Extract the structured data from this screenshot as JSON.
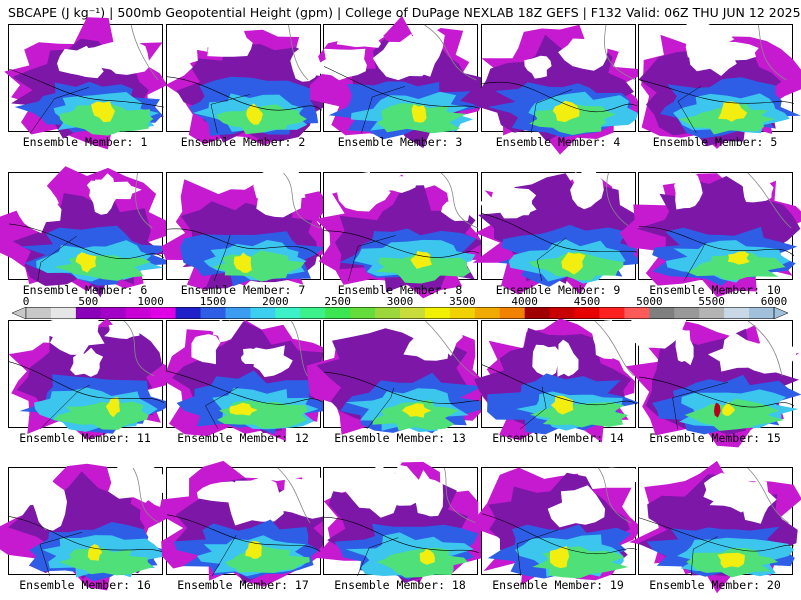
{
  "header": {
    "title": "SBCAPE (J kg⁻¹) | 500mb Geopotential Height (gpm) | College of DuPage NEXLAB 18Z GEFS | F132 Valid: 06Z THU JUN 12 2025"
  },
  "members": [
    {
      "label": "Ensemble Member: 1"
    },
    {
      "label": "Ensemble Member: 2"
    },
    {
      "label": "Ensemble Member: 3"
    },
    {
      "label": "Ensemble Member: 4"
    },
    {
      "label": "Ensemble Member: 5"
    },
    {
      "label": "Ensemble Member: 6"
    },
    {
      "label": "Ensemble Member: 7"
    },
    {
      "label": "Ensemble Member: 8"
    },
    {
      "label": "Ensemble Member: 9"
    },
    {
      "label": "Ensemble Member: 10"
    },
    {
      "label": "Ensemble Member: 11"
    },
    {
      "label": "Ensemble Member: 12"
    },
    {
      "label": "Ensemble Member: 13"
    },
    {
      "label": "Ensemble Member: 14"
    },
    {
      "label": "Ensemble Member: 15"
    },
    {
      "label": "Ensemble Member: 16"
    },
    {
      "label": "Ensemble Member: 17"
    },
    {
      "label": "Ensemble Member: 18"
    },
    {
      "label": "Ensemble Member: 19"
    },
    {
      "label": "Ensemble Member: 20"
    }
  ],
  "colorbar": {
    "min": 0,
    "max": 6000,
    "tick_labels": [
      "0",
      "500",
      "1000",
      "1500",
      "2000",
      "2500",
      "3000",
      "3500",
      "4000",
      "4500",
      "5000",
      "5500",
      "6000"
    ],
    "colors": [
      "#c8c8c8",
      "#e6e6e6",
      "#8a00b8",
      "#a300c8",
      "#c800d6",
      "#e000e6",
      "#2020c8",
      "#2e5ee6",
      "#3c9cf0",
      "#3ccff0",
      "#3cf0c8",
      "#3cf08a",
      "#3ce650",
      "#64dc3c",
      "#9cd83c",
      "#c8dc3c",
      "#f0f000",
      "#f0d200",
      "#f0aa00",
      "#f08200",
      "#a00000",
      "#c80000",
      "#e60000",
      "#ff2020",
      "#ff5a5a",
      "#7f7f7f",
      "#999999",
      "#b4b4b4",
      "#c8d8e6",
      "#a0c0dc"
    ]
  },
  "shading_colors": {
    "purple_dark": "#7c17a8",
    "magenta": "#c61ad0",
    "blue": "#2e5ee6",
    "cyan": "#3cc6ee",
    "green": "#4fe07a",
    "yellow": "#f2ee10",
    "red": "#b8001a",
    "border": "#000000",
    "coast": "#888888"
  }
}
